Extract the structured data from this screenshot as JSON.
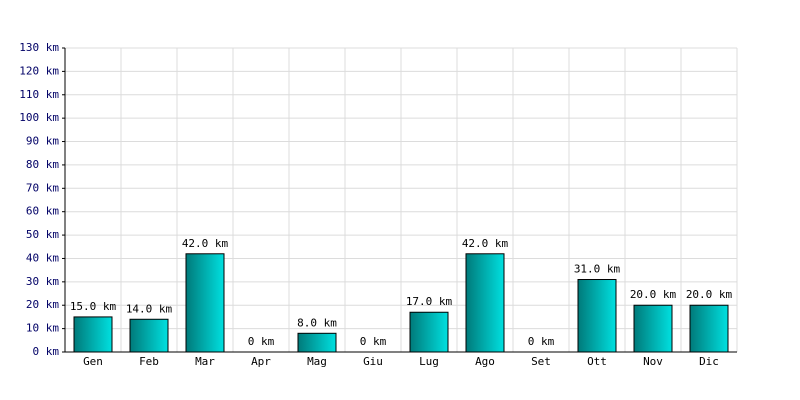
{
  "chart_data": {
    "type": "bar",
    "categories": [
      "Gen",
      "Feb",
      "Mar",
      "Apr",
      "Mag",
      "Giu",
      "Lug",
      "Ago",
      "Set",
      "Ott",
      "Nov",
      "Dic"
    ],
    "values": [
      15,
      14,
      42,
      0,
      8,
      0,
      17,
      42,
      0,
      31,
      20,
      20
    ],
    "value_labels": [
      "15.0 km",
      "14.0 km",
      "42.0 km",
      "0 km",
      "8.0 km",
      "0 km",
      "17.0 km",
      "42.0 km",
      "0 km",
      "31.0 km",
      "20.0 km",
      "20.0 km"
    ],
    "color": "#00e0e0",
    "ylim": [
      0,
      130
    ],
    "yticks": [
      {
        "value": 0,
        "label": "0 km"
      },
      {
        "value": 10,
        "label": "10 km"
      },
      {
        "value": 20,
        "label": "20 km"
      },
      {
        "value": 30,
        "label": "30 km"
      },
      {
        "value": 40,
        "label": "40 km"
      },
      {
        "value": 50,
        "label": "50 km"
      },
      {
        "value": 60,
        "label": "60 km"
      },
      {
        "value": 70,
        "label": "70 km"
      },
      {
        "value": 80,
        "label": "80 km"
      },
      {
        "value": 90,
        "label": "90 km"
      },
      {
        "value": 100,
        "label": "100 km"
      },
      {
        "value": 110,
        "label": "110 km"
      },
      {
        "value": 120,
        "label": "120 km"
      },
      {
        "value": 130,
        "label": "130 km"
      }
    ],
    "grid": true
  }
}
